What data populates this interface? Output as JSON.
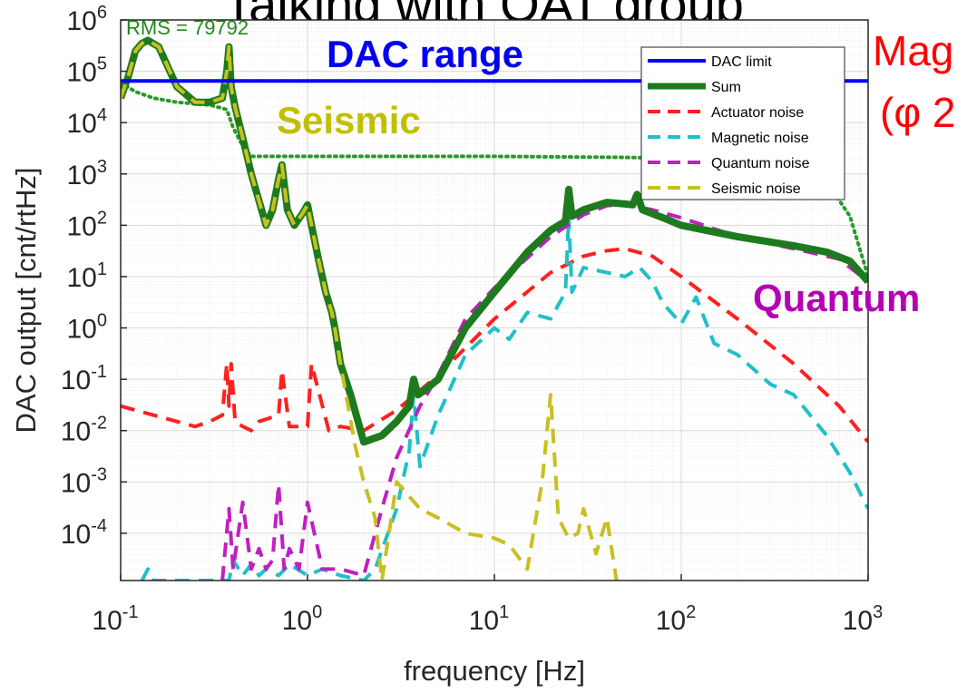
{
  "slide_title_fragment": "Talking with OAT group",
  "side_note_line1": "Mag",
  "side_note_line2": "(φ 2",
  "colors": {
    "dac_limit": "#0000ff",
    "sum": "#1e7a1e",
    "actuator": "#ff2020",
    "magnetic": "#20c0c8",
    "quantum": "#c020c0",
    "seismic": "#c8c020",
    "rms_dotted": "#2a9a2a",
    "note_red": "#ff0000",
    "quantum_label": "#b400b4",
    "seismic_label": "#c0c000",
    "dac_label": "#0000ee"
  },
  "chart_data": {
    "type": "line",
    "xscale": "log",
    "yscale": "log",
    "xlim": [
      0.1,
      1000
    ],
    "ylim": [
      1.2e-05,
      1000000
    ],
    "grid": true,
    "legend_position": "top-right",
    "xlabel": "frequency [Hz]",
    "ylabel": "DAC output [cnt/rtHz]",
    "xticks": [
      {
        "value": 0.1,
        "base": "10",
        "exp": "-1"
      },
      {
        "value": 1,
        "base": "10",
        "exp": "0"
      },
      {
        "value": 10,
        "base": "10",
        "exp": "1"
      },
      {
        "value": 100,
        "base": "10",
        "exp": "2"
      },
      {
        "value": 1000,
        "base": "10",
        "exp": "3"
      }
    ],
    "yticks": [
      {
        "value": 0.0001,
        "base": "10",
        "exp": "-4"
      },
      {
        "value": 0.001,
        "base": "10",
        "exp": "-3"
      },
      {
        "value": 0.01,
        "base": "10",
        "exp": "-2"
      },
      {
        "value": 0.1,
        "base": "10",
        "exp": "-1"
      },
      {
        "value": 1,
        "base": "10",
        "exp": "0"
      },
      {
        "value": 10,
        "base": "10",
        "exp": "1"
      },
      {
        "value": 100,
        "base": "10",
        "exp": "2"
      },
      {
        "value": 1000,
        "base": "10",
        "exp": "3"
      },
      {
        "value": 10000,
        "base": "10",
        "exp": "4"
      },
      {
        "value": 100000,
        "base": "10",
        "exp": "5"
      },
      {
        "value": 1000000,
        "base": "10",
        "exp": "6"
      }
    ],
    "annotations": {
      "rms": "RMS = 79792",
      "dac_range": "DAC range",
      "seismic": "Seismic",
      "quantum": "Quantum"
    },
    "rms_curve": {
      "x": [
        0.1,
        0.12,
        0.15,
        0.2,
        0.3,
        0.37,
        0.4,
        0.45,
        0.5,
        1,
        2,
        5,
        10,
        50,
        100,
        200,
        400,
        600,
        800,
        1000
      ],
      "y": [
        60000,
        40000,
        30000,
        25000,
        22000,
        18000,
        8000,
        3500,
        2200,
        2200,
        2200,
        2200,
        2200,
        2100,
        2000,
        1800,
        1400,
        700,
        150,
        10
      ]
    },
    "series": [
      {
        "name": "DAC limit",
        "style": "solid",
        "color": "#0000ff",
        "width": 4,
        "x": [
          0.1,
          1000
        ],
        "y": [
          65000,
          65000
        ]
      },
      {
        "name": "Sum",
        "style": "solid",
        "color": "#1e7a1e",
        "width": 8,
        "x": [
          0.1,
          0.11,
          0.12,
          0.13,
          0.14,
          0.16,
          0.2,
          0.25,
          0.3,
          0.35,
          0.37,
          0.38,
          0.39,
          0.41,
          0.45,
          0.5,
          0.55,
          0.6,
          0.65,
          0.7,
          0.73,
          0.78,
          0.85,
          0.95,
          1.0,
          1.05,
          1.15,
          1.25,
          1.35,
          1.4,
          1.5,
          1.7,
          2.0,
          2.5,
          3.0,
          3.5,
          3.7,
          3.9,
          4.2,
          5,
          7,
          10,
          15,
          20,
          24,
          25,
          26,
          30,
          40,
          50,
          55,
          58,
          62,
          80,
          100,
          200,
          400,
          600,
          800,
          1000
        ],
        "y": [
          30000,
          80000,
          250000,
          350000,
          400000,
          300000,
          50000,
          25000,
          25000,
          30000,
          100000,
          300000,
          50000,
          20000,
          5000,
          1000,
          300,
          100,
          200,
          800,
          1500,
          200,
          100,
          180,
          250,
          100,
          20,
          5,
          2,
          1,
          0.2,
          0.05,
          0.006,
          0.008,
          0.015,
          0.03,
          0.1,
          0.05,
          0.06,
          0.1,
          1,
          5,
          30,
          80,
          120,
          500,
          150,
          200,
          280,
          260,
          250,
          400,
          200,
          140,
          100,
          60,
          40,
          30,
          20,
          8
        ]
      },
      {
        "name": "Actuator noise",
        "style": "dashed",
        "color": "#ff2020",
        "width": 4,
        "x": [
          0.1,
          0.15,
          0.2,
          0.25,
          0.3,
          0.35,
          0.37,
          0.38,
          0.39,
          0.41,
          0.45,
          0.5,
          0.55,
          0.7,
          0.73,
          0.8,
          1.0,
          1.05,
          1.3,
          1.5,
          2,
          3,
          5,
          10,
          20,
          30,
          40,
          50,
          70,
          100,
          200,
          400,
          700,
          1000
        ],
        "y": [
          0.03,
          0.02,
          0.015,
          0.012,
          0.015,
          0.02,
          0.2,
          0.03,
          0.2,
          0.015,
          0.012,
          0.01,
          0.015,
          0.02,
          0.15,
          0.012,
          0.012,
          0.2,
          0.01,
          0.012,
          0.01,
          0.025,
          0.12,
          1.5,
          12,
          25,
          32,
          35,
          25,
          10,
          1.5,
          0.2,
          0.03,
          0.006
        ]
      },
      {
        "name": "Magnetic noise",
        "style": "dashed",
        "color": "#20c0c8",
        "width": 4,
        "x": [
          0.13,
          0.14,
          0.15,
          0.38,
          0.4,
          0.45,
          0.5,
          0.55,
          0.6,
          0.7,
          0.8,
          1.0,
          1.2,
          1.5,
          2.0,
          2.3,
          3,
          3.5,
          3.7,
          4,
          5,
          7,
          10,
          12,
          15,
          20,
          24,
          25,
          26,
          30,
          40,
          50,
          60,
          70,
          80,
          100,
          120,
          150,
          200,
          300,
          400,
          600,
          800,
          1000
        ],
        "y": [
          1.2e-05,
          2e-05,
          1.2e-05,
          1.2e-05,
          3e-05,
          1.5e-05,
          2.5e-05,
          1.5e-05,
          2e-05,
          1.5e-05,
          2.5e-05,
          1.5e-05,
          2e-05,
          1.5e-05,
          1.2e-05,
          2e-05,
          0.0003,
          0.004,
          0.05,
          0.002,
          0.02,
          0.3,
          1,
          0.6,
          2,
          1.5,
          5,
          150,
          5,
          15,
          12,
          10,
          15,
          8,
          3,
          1.2,
          4,
          0.5,
          0.3,
          0.08,
          0.05,
          0.008,
          0.0015,
          0.0003
        ]
      },
      {
        "name": "Quantum noise",
        "style": "dashed",
        "color": "#c020c0",
        "width": 4,
        "x": [
          0.35,
          0.38,
          0.4,
          0.45,
          0.5,
          0.55,
          0.6,
          0.65,
          0.7,
          0.75,
          0.8,
          0.9,
          1.0,
          1.2,
          1.5,
          2,
          2.5,
          3,
          4,
          5,
          7,
          10,
          20,
          30,
          40,
          50,
          70,
          100,
          200,
          400,
          700,
          1000
        ],
        "y": [
          1.2e-05,
          0.0003,
          2e-05,
          0.0004,
          2e-05,
          5e-05,
          2e-05,
          3e-05,
          0.0009,
          2e-05,
          5e-05,
          2e-05,
          0.0004,
          2e-05,
          2e-05,
          1.5e-05,
          0.0003,
          0.003,
          0.03,
          0.12,
          1.5,
          6,
          60,
          160,
          240,
          260,
          200,
          140,
          60,
          35,
          22,
          8
        ]
      },
      {
        "name": "Seismic noise",
        "style": "dashed",
        "color": "#c8c020",
        "width": 4,
        "x": [
          0.1,
          0.11,
          0.12,
          0.13,
          0.14,
          0.16,
          0.2,
          0.25,
          0.3,
          0.35,
          0.37,
          0.38,
          0.39,
          0.41,
          0.45,
          0.5,
          0.55,
          0.6,
          0.65,
          0.7,
          0.73,
          0.78,
          0.85,
          0.95,
          1.0,
          1.05,
          1.15,
          1.25,
          1.35,
          1.4,
          1.5,
          1.8,
          2.0,
          2.3,
          2.5,
          3,
          4,
          5,
          7,
          10,
          12,
          15,
          18,
          20,
          22,
          25,
          28,
          30,
          35,
          40,
          45
        ],
        "y": [
          30000,
          80000,
          250000,
          350000,
          400000,
          300000,
          50000,
          25000,
          25000,
          30000,
          100000,
          300000,
          50000,
          20000,
          5000,
          1000,
          300,
          100,
          200,
          800,
          1500,
          200,
          100,
          180,
          250,
          100,
          20,
          5,
          2,
          1,
          0.2,
          0.005,
          0.001,
          0.0002,
          1.2e-05,
          0.001,
          0.0003,
          0.0002,
          0.0001,
          8e-05,
          6e-05,
          2e-05,
          0.001,
          0.05,
          0.0002,
          8e-05,
          0.0001,
          0.0003,
          4e-05,
          0.0002,
          1.2e-05
        ]
      }
    ]
  }
}
